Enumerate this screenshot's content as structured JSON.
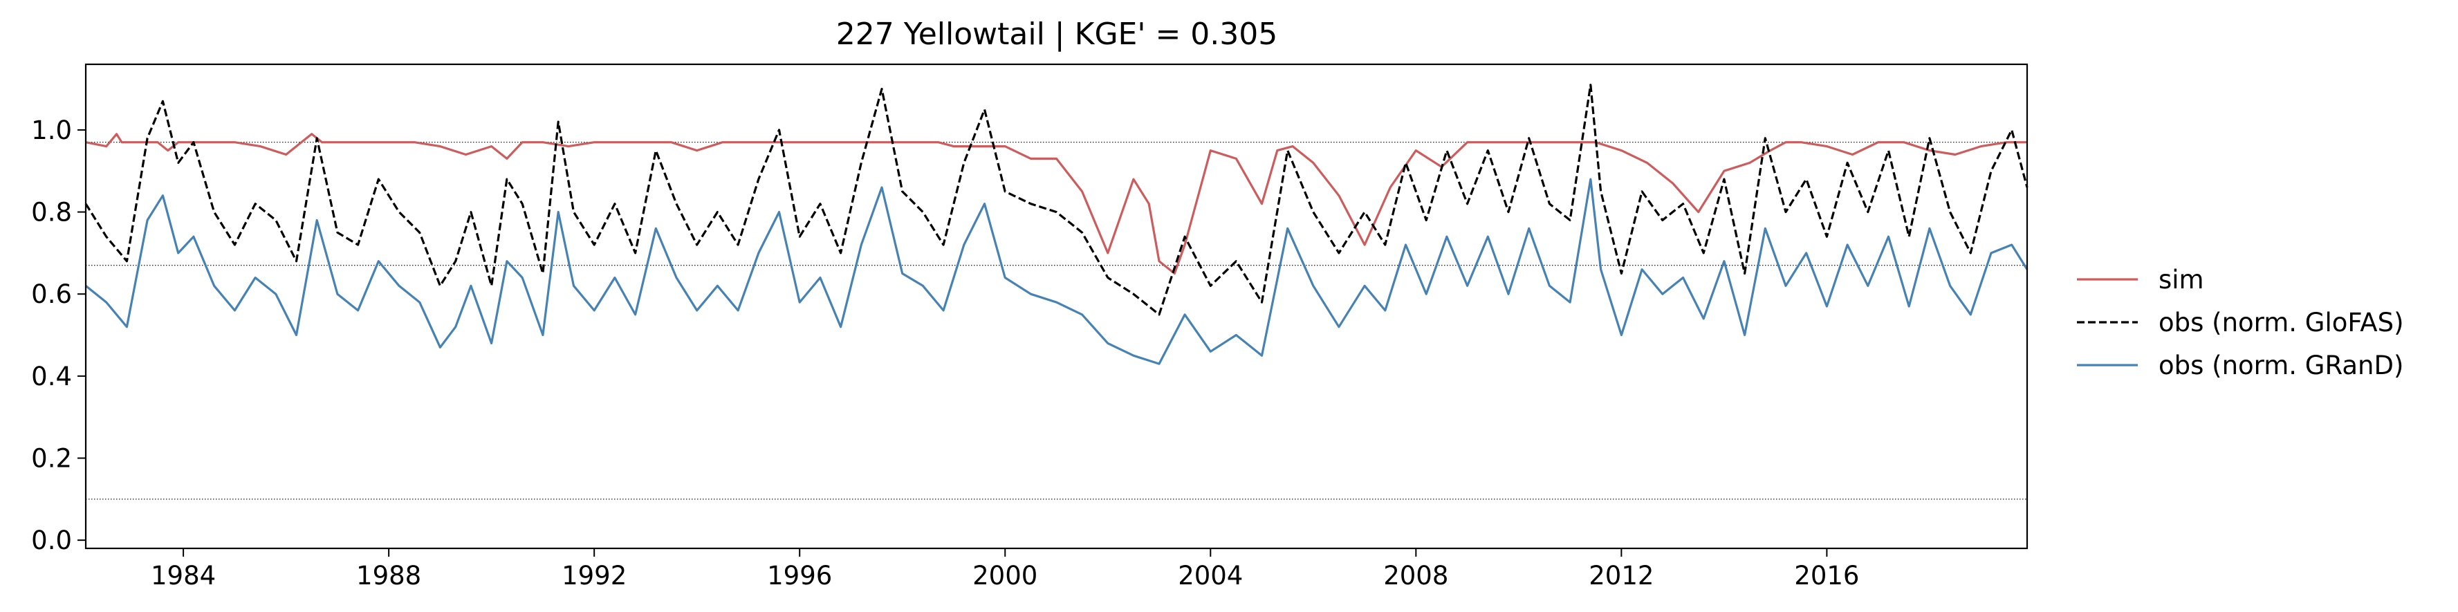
{
  "chart_data": {
    "type": "line",
    "title": "227  Yellowtail | KGE' = 0.305",
    "xlabel": "",
    "ylabel": "",
    "x_range": [
      1982.1,
      2019.9
    ],
    "ylim": [
      -0.02,
      1.16
    ],
    "x_tick_values": [
      1984,
      1988,
      1992,
      1996,
      2000,
      2004,
      2008,
      2012,
      2016
    ],
    "x_tick_labels": [
      "1984",
      "1988",
      "1992",
      "1996",
      "2000",
      "2004",
      "2008",
      "2012",
      "2016"
    ],
    "y_tick_values": [
      0.0,
      0.2,
      0.4,
      0.6,
      0.8,
      1.0
    ],
    "y_tick_labels": [
      "0.0",
      "0.2",
      "0.4",
      "0.6",
      "0.8",
      "1.0"
    ],
    "reference_lines": [
      0.97,
      0.67,
      0.1
    ],
    "grid": false,
    "legend_position": "outside right",
    "series": [
      {
        "name": "sim",
        "color": "#cd5c5c",
        "style": "solid",
        "x": [
          1982.1,
          1982.5,
          1982.7,
          1982.8,
          1983.0,
          1983.5,
          1983.7,
          1983.9,
          1984.2,
          1984.5,
          1985.0,
          1985.5,
          1986.0,
          1986.5,
          1986.7,
          1987.0,
          1987.5,
          1988.0,
          1988.5,
          1989.0,
          1989.5,
          1990.0,
          1990.3,
          1990.6,
          1991.0,
          1991.5,
          1992.0,
          1992.5,
          1993.0,
          1993.5,
          1994.0,
          1994.5,
          1995.0,
          1995.5,
          1996.0,
          1997.0,
          1998.0,
          1998.7,
          1999.0,
          1999.6,
          2000.0,
          2000.5,
          2001.0,
          2001.5,
          2002.0,
          2002.5,
          2002.8,
          2003.0,
          2003.3,
          2003.5,
          2004.0,
          2004.5,
          2005.0,
          2005.3,
          2005.6,
          2006.0,
          2006.5,
          2007.0,
          2007.5,
          2008.0,
          2008.5,
          2009.0,
          2009.5,
          2010.0,
          2010.5,
          2011.0,
          2011.5,
          2012.0,
          2012.5,
          2013.0,
          2013.5,
          2014.0,
          2014.5,
          2014.9,
          2015.2,
          2015.5,
          2016.0,
          2016.5,
          2017.0,
          2017.5,
          2018.0,
          2018.5,
          2019.0,
          2019.5,
          2019.9
        ],
        "values": [
          0.97,
          0.96,
          0.99,
          0.97,
          0.97,
          0.97,
          0.95,
          0.97,
          0.97,
          0.97,
          0.97,
          0.96,
          0.94,
          0.99,
          0.97,
          0.97,
          0.97,
          0.97,
          0.97,
          0.96,
          0.94,
          0.96,
          0.93,
          0.97,
          0.97,
          0.96,
          0.97,
          0.97,
          0.97,
          0.97,
          0.95,
          0.97,
          0.97,
          0.97,
          0.97,
          0.97,
          0.97,
          0.97,
          0.96,
          0.96,
          0.96,
          0.93,
          0.93,
          0.85,
          0.7,
          0.88,
          0.82,
          0.68,
          0.65,
          0.72,
          0.95,
          0.93,
          0.82,
          0.95,
          0.96,
          0.92,
          0.84,
          0.72,
          0.86,
          0.95,
          0.91,
          0.97,
          0.97,
          0.97,
          0.97,
          0.97,
          0.97,
          0.95,
          0.92,
          0.87,
          0.8,
          0.9,
          0.92,
          0.95,
          0.97,
          0.97,
          0.96,
          0.94,
          0.97,
          0.97,
          0.95,
          0.94,
          0.96,
          0.97,
          0.97
        ]
      },
      {
        "name": "obs (norm. GloFAS)",
        "color": "#000000",
        "style": "dashed",
        "x": [
          1982.1,
          1982.5,
          1982.9,
          1983.3,
          1983.6,
          1983.9,
          1984.2,
          1984.6,
          1985.0,
          1985.4,
          1985.8,
          1986.2,
          1986.6,
          1987.0,
          1987.4,
          1987.8,
          1988.2,
          1988.6,
          1989.0,
          1989.3,
          1989.6,
          1990.0,
          1990.3,
          1990.6,
          1991.0,
          1991.3,
          1991.6,
          1992.0,
          1992.4,
          1992.8,
          1993.2,
          1993.6,
          1994.0,
          1994.4,
          1994.8,
          1995.2,
          1995.6,
          1996.0,
          1996.4,
          1996.8,
          1997.2,
          1997.6,
          1998.0,
          1998.4,
          1998.8,
          1999.2,
          1999.6,
          2000.0,
          2000.5,
          2001.0,
          2001.5,
          2002.0,
          2002.5,
          2003.0,
          2003.5,
          2004.0,
          2004.5,
          2005.0,
          2005.5,
          2006.0,
          2006.5,
          2007.0,
          2007.4,
          2007.8,
          2008.2,
          2008.6,
          2009.0,
          2009.4,
          2009.8,
          2010.2,
          2010.6,
          2011.0,
          2011.4,
          2011.6,
          2012.0,
          2012.4,
          2012.8,
          2013.2,
          2013.6,
          2014.0,
          2014.4,
          2014.8,
          2015.2,
          2015.6,
          2016.0,
          2016.4,
          2016.8,
          2017.2,
          2017.6,
          2018.0,
          2018.4,
          2018.8,
          2019.2,
          2019.6,
          2019.9
        ],
        "values": [
          0.82,
          0.74,
          0.68,
          0.98,
          1.07,
          0.92,
          0.97,
          0.8,
          0.72,
          0.82,
          0.78,
          0.68,
          0.98,
          0.75,
          0.72,
          0.88,
          0.8,
          0.75,
          0.62,
          0.68,
          0.8,
          0.62,
          0.88,
          0.82,
          0.65,
          1.02,
          0.8,
          0.72,
          0.82,
          0.7,
          0.95,
          0.82,
          0.72,
          0.8,
          0.72,
          0.88,
          1.0,
          0.74,
          0.82,
          0.7,
          0.92,
          1.1,
          0.85,
          0.8,
          0.72,
          0.92,
          1.05,
          0.85,
          0.82,
          0.8,
          0.75,
          0.64,
          0.6,
          0.55,
          0.74,
          0.62,
          0.68,
          0.58,
          0.95,
          0.8,
          0.7,
          0.8,
          0.72,
          0.92,
          0.78,
          0.95,
          0.82,
          0.95,
          0.8,
          0.98,
          0.82,
          0.78,
          1.11,
          0.85,
          0.65,
          0.85,
          0.78,
          0.82,
          0.7,
          0.88,
          0.65,
          0.98,
          0.8,
          0.88,
          0.74,
          0.92,
          0.8,
          0.95,
          0.74,
          0.98,
          0.8,
          0.7,
          0.9,
          1.0,
          0.86
        ]
      },
      {
        "name": "obs (norm. GRanD)",
        "color": "#4682b4",
        "style": "solid",
        "x": [
          1982.1,
          1982.5,
          1982.9,
          1983.3,
          1983.6,
          1983.9,
          1984.2,
          1984.6,
          1985.0,
          1985.4,
          1985.8,
          1986.2,
          1986.6,
          1987.0,
          1987.4,
          1987.8,
          1988.2,
          1988.6,
          1989.0,
          1989.3,
          1989.6,
          1990.0,
          1990.3,
          1990.6,
          1991.0,
          1991.3,
          1991.6,
          1992.0,
          1992.4,
          1992.8,
          1993.2,
          1993.6,
          1994.0,
          1994.4,
          1994.8,
          1995.2,
          1995.6,
          1996.0,
          1996.4,
          1996.8,
          1997.2,
          1997.6,
          1998.0,
          1998.4,
          1998.8,
          1999.2,
          1999.6,
          2000.0,
          2000.5,
          2001.0,
          2001.5,
          2002.0,
          2002.5,
          2003.0,
          2003.5,
          2004.0,
          2004.5,
          2005.0,
          2005.5,
          2006.0,
          2006.5,
          2007.0,
          2007.4,
          2007.8,
          2008.2,
          2008.6,
          2009.0,
          2009.4,
          2009.8,
          2010.2,
          2010.6,
          2011.0,
          2011.4,
          2011.6,
          2012.0,
          2012.4,
          2012.8,
          2013.2,
          2013.6,
          2014.0,
          2014.4,
          2014.8,
          2015.2,
          2015.6,
          2016.0,
          2016.4,
          2016.8,
          2017.2,
          2017.6,
          2018.0,
          2018.4,
          2018.8,
          2019.2,
          2019.6,
          2019.9
        ],
        "values": [
          0.62,
          0.58,
          0.52,
          0.78,
          0.84,
          0.7,
          0.74,
          0.62,
          0.56,
          0.64,
          0.6,
          0.5,
          0.78,
          0.6,
          0.56,
          0.68,
          0.62,
          0.58,
          0.47,
          0.52,
          0.62,
          0.48,
          0.68,
          0.64,
          0.5,
          0.8,
          0.62,
          0.56,
          0.64,
          0.55,
          0.76,
          0.64,
          0.56,
          0.62,
          0.56,
          0.7,
          0.8,
          0.58,
          0.64,
          0.52,
          0.72,
          0.86,
          0.65,
          0.62,
          0.56,
          0.72,
          0.82,
          0.64,
          0.6,
          0.58,
          0.55,
          0.48,
          0.45,
          0.43,
          0.55,
          0.46,
          0.5,
          0.45,
          0.76,
          0.62,
          0.52,
          0.62,
          0.56,
          0.72,
          0.6,
          0.74,
          0.62,
          0.74,
          0.6,
          0.76,
          0.62,
          0.58,
          0.88,
          0.66,
          0.5,
          0.66,
          0.6,
          0.64,
          0.54,
          0.68,
          0.5,
          0.76,
          0.62,
          0.7,
          0.57,
          0.72,
          0.62,
          0.74,
          0.57,
          0.76,
          0.62,
          0.55,
          0.7,
          0.72,
          0.66
        ]
      }
    ]
  }
}
